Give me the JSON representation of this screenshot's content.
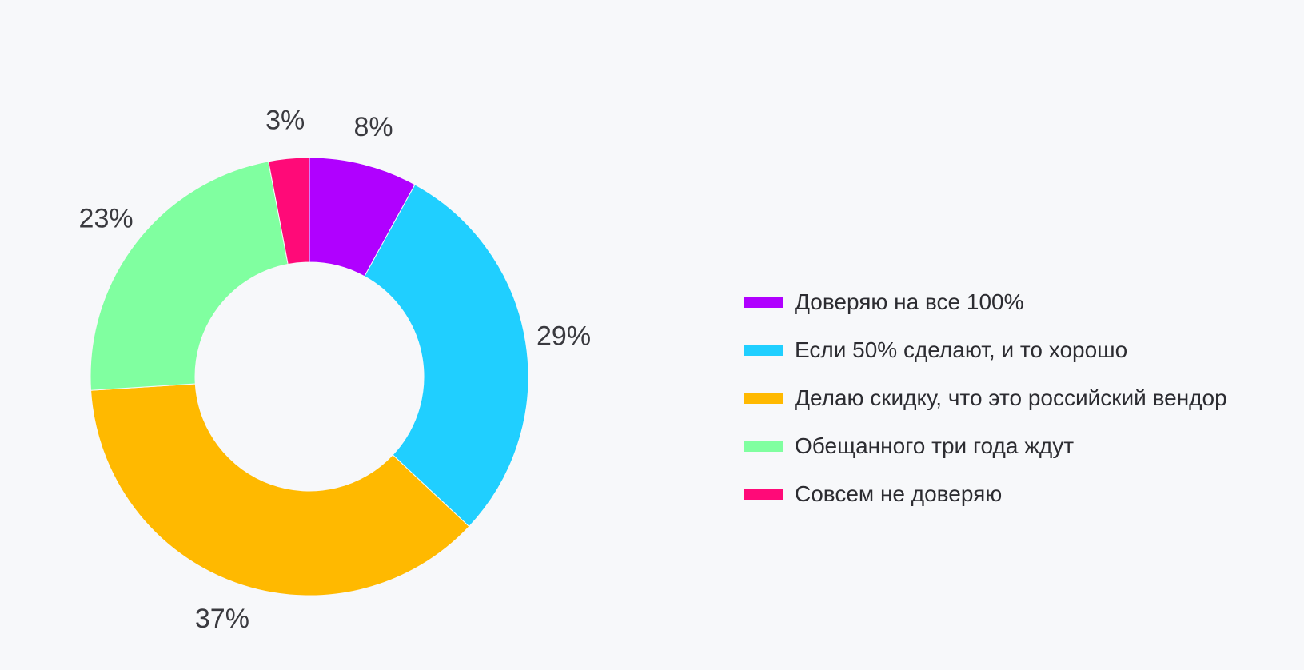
{
  "chart_data": {
    "type": "pie",
    "variant": "donut",
    "title": "",
    "slices": [
      {
        "label": "Доверяю на все 100%",
        "value": 8,
        "value_label": "8%",
        "color": "#b000ff"
      },
      {
        "label": "Если 50% сделают, и то хорошо",
        "value": 29,
        "value_label": "29%",
        "color": "#20cfff"
      },
      {
        "label": "Делаю скидку, что это российский вендор",
        "value": 37,
        "value_label": "37%",
        "color": "#ffb900"
      },
      {
        "label": "Обещанного три года ждут",
        "value": 23,
        "value_label": "23%",
        "color": "#80ffa0"
      },
      {
        "label": "Совсем не доверяю",
        "value": 3,
        "value_label": "3%",
        "color": "#ff0a78"
      }
    ],
    "legend": {
      "position": "right",
      "items": [
        "Доверяю на все 100%",
        "Если 50% сделают, и то хорошо",
        "Делаю скидку, что это российский вендор",
        "Обещанного три года ждут",
        "Совсем не доверяю"
      ]
    }
  }
}
